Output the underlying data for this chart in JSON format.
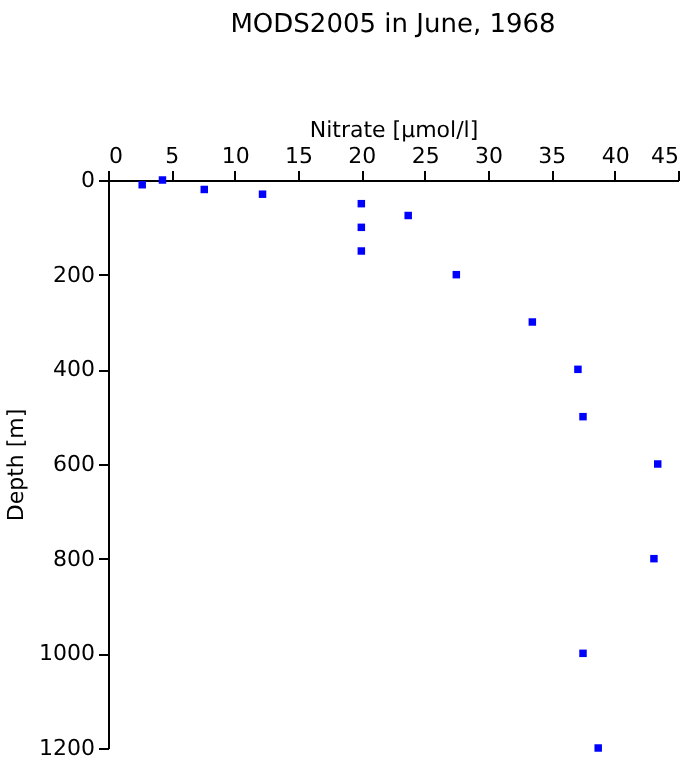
{
  "chart_data": {
    "type": "scatter",
    "title": "MODS2005 in June, 1968",
    "xlabel": "Nitrate [µmol/l]",
    "ylabel": "Depth [m]",
    "x": [
      2.7,
      4.3,
      7.6,
      12.2,
      20,
      23.7,
      20,
      20,
      27.5,
      33.5,
      37.1,
      37.5,
      43.4,
      43.1,
      37.5,
      38.7
    ],
    "series": [
      {
        "color": "#0000ff",
        "values": [
          10,
          0,
          20,
          30,
          50,
          75,
          100,
          150,
          200,
          300,
          400,
          500,
          600,
          800,
          1000,
          1200
        ]
      }
    ],
    "xlim": [
      0,
      45
    ],
    "xticks": [
      0,
      5,
      10,
      15,
      20,
      25,
      30,
      35,
      40,
      45
    ],
    "ylim": [
      1200,
      0
    ],
    "yticks": [
      0,
      200,
      400,
      600,
      800,
      1000,
      1200
    ],
    "marker": "square",
    "grid": false
  }
}
